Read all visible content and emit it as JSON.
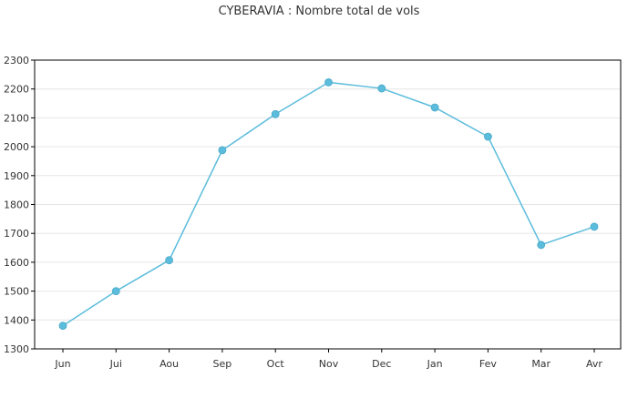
{
  "chart_data": {
    "type": "line",
    "title": "CYBERAVIA : Nombre total de vols",
    "xlabel": "",
    "ylabel": "",
    "categories": [
      "Jun",
      "Jui",
      "Aou",
      "Sep",
      "Oct",
      "Nov",
      "Dec",
      "Jan",
      "Fev",
      "Mar",
      "Avr"
    ],
    "series": [
      {
        "values": [
          1380,
          1500,
          1607,
          1988,
          2113,
          2223,
          2202,
          2136,
          2035,
          1660,
          1723
        ]
      }
    ],
    "ylim": [
      1300,
      2300
    ],
    "yticks": [
      1300,
      1400,
      1500,
      1600,
      1700,
      1800,
      1900,
      2000,
      2100,
      2200,
      2300
    ],
    "grid": true,
    "legend": "none",
    "colors": {
      "line": "#5bbcdc",
      "marker": "#5bbcdc",
      "grid": "#e6e6e6",
      "axis": "#000000"
    }
  }
}
